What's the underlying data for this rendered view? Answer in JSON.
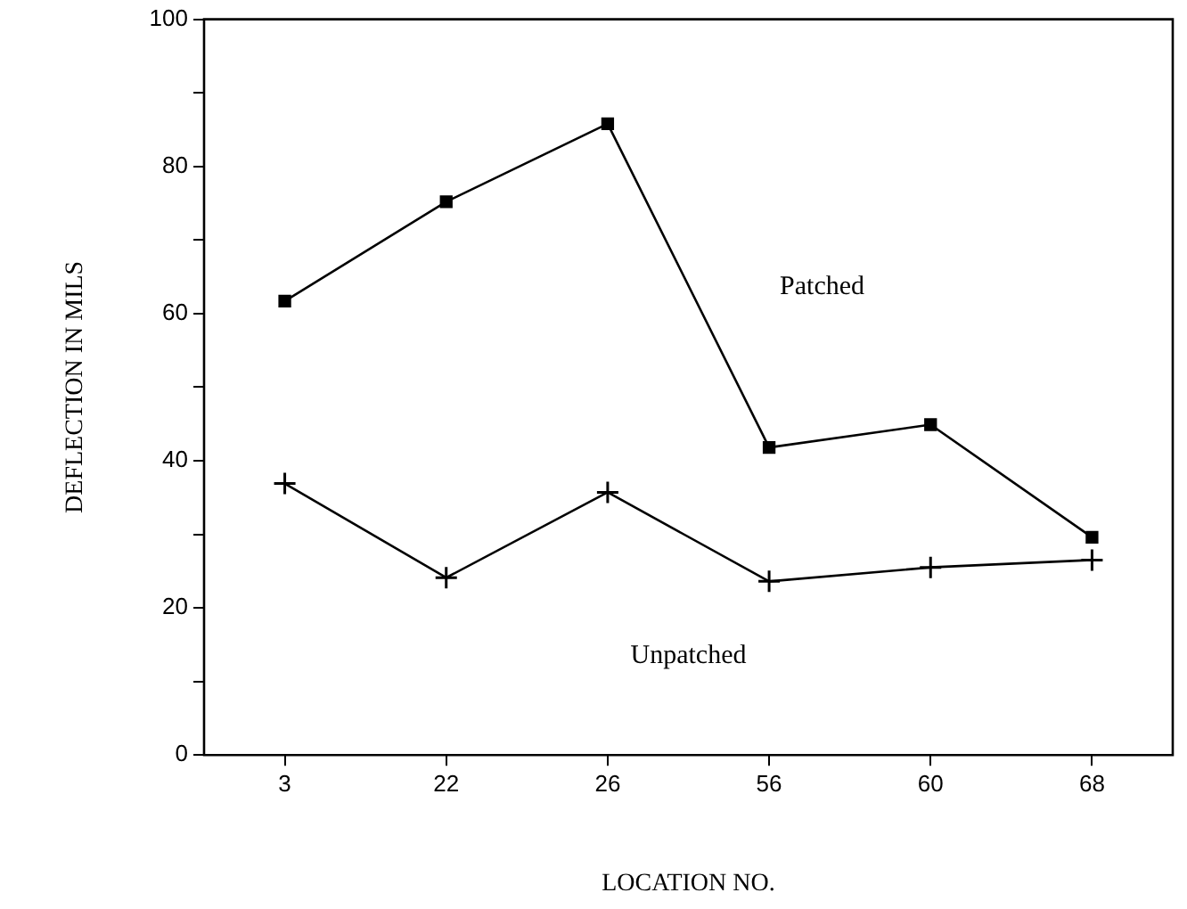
{
  "chart_data": {
    "type": "line",
    "xlabel": "LOCATION NO.",
    "ylabel": "DEFLECTION IN MILS",
    "categories": [
      "3",
      "22",
      "26",
      "56",
      "60",
      "68"
    ],
    "series": [
      {
        "name": "Patched",
        "color": "#000000",
        "marker": "square",
        "values": [
          61.7,
          75.2,
          85.8,
          41.8,
          44.9,
          29.6
        ]
      },
      {
        "name": "Unpatched",
        "color": "#000000",
        "marker": "cross",
        "values": [
          36.9,
          24.1,
          35.7,
          23.6,
          25.5,
          26.5
        ]
      }
    ],
    "ylim": [
      0,
      100
    ],
    "yticks": [
      0,
      {
        "value": 10,
        "label": null
      },
      20,
      {
        "value": 30,
        "label": null
      },
      40,
      {
        "value": 50,
        "label": null
      },
      60,
      {
        "value": 70,
        "label": null
      },
      80,
      {
        "value": 90,
        "label": null
      },
      100
    ],
    "grid": false,
    "legend": false,
    "line_style": "solid"
  }
}
